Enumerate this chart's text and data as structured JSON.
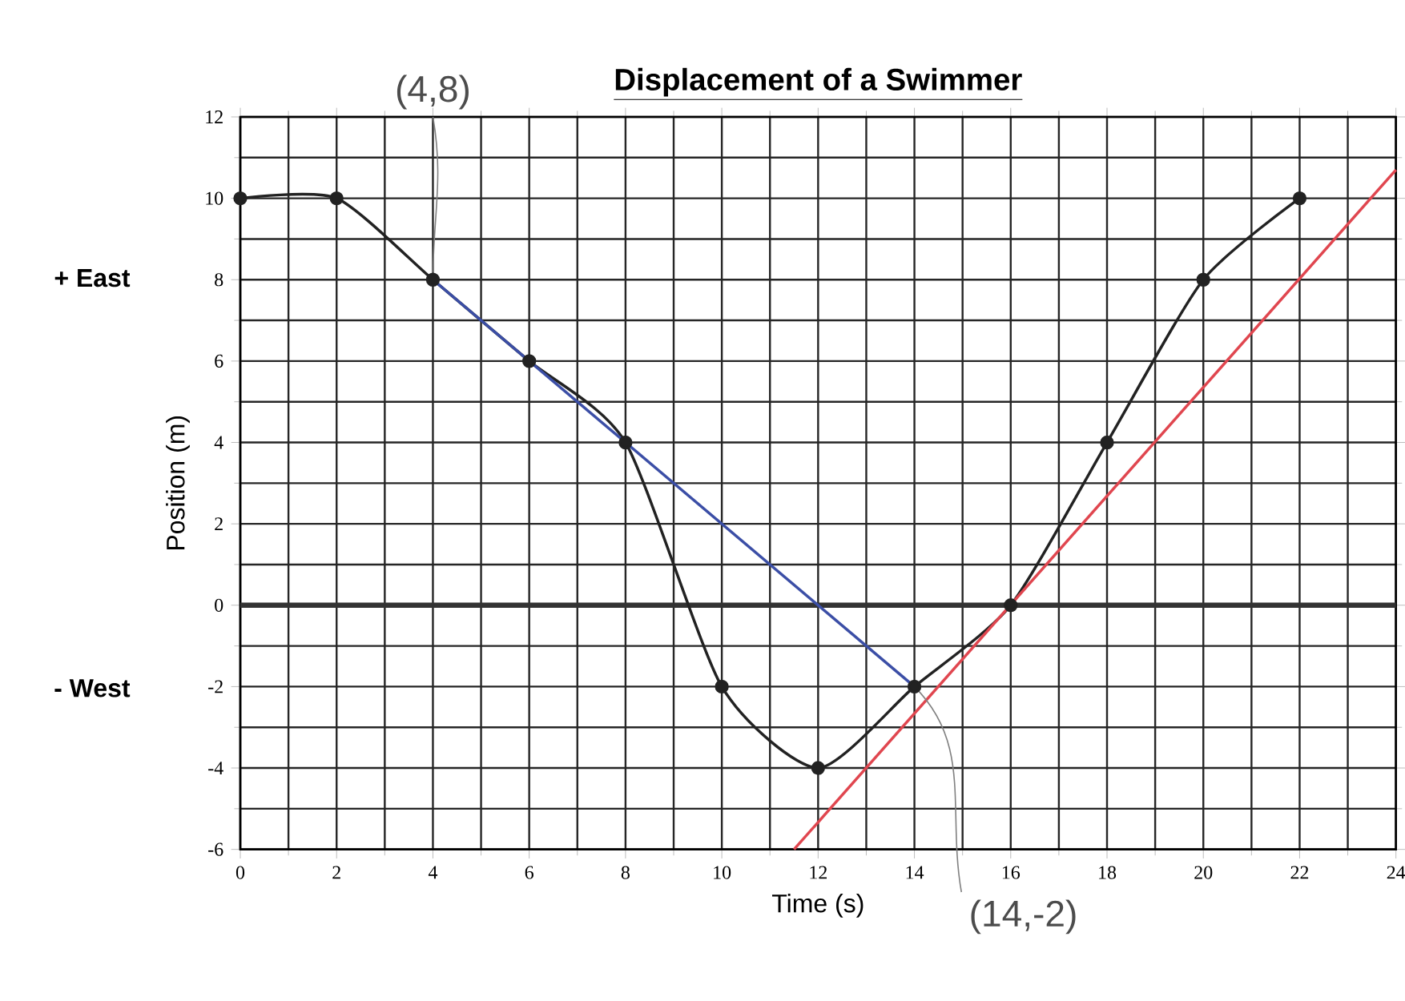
{
  "chart_data": {
    "type": "line",
    "title": "Displacement of a Swimmer",
    "xlabel": "Time (s)",
    "ylabel": "Position (m)",
    "xlim": [
      0,
      24
    ],
    "ylim": [
      -6,
      12
    ],
    "xticks": [
      0,
      2,
      4,
      6,
      8,
      10,
      12,
      14,
      16,
      18,
      20,
      22,
      24
    ],
    "yticks": [
      -6,
      -4,
      -2,
      0,
      2,
      4,
      6,
      8,
      10,
      12
    ],
    "grid": true,
    "marker": "circle",
    "series": [
      {
        "color": "#222222",
        "x": [
          0,
          2,
          4,
          6,
          8,
          10,
          12,
          14,
          16,
          18,
          20,
          22
        ],
        "values": [
          10,
          10,
          8,
          6,
          4,
          -2,
          -4,
          -2,
          0,
          4,
          8,
          10
        ]
      },
      {
        "color": "#3b4ea6",
        "marker": "none",
        "x": [
          4,
          14
        ],
        "values": [
          8,
          -2
        ]
      },
      {
        "color": "#e0464f",
        "marker": "none",
        "x": [
          11.5,
          24
        ],
        "values": [
          -6,
          10.7
        ]
      }
    ],
    "ref_lines": [
      {
        "axis": "y",
        "value": 0,
        "color": "#333333"
      }
    ],
    "annotations": [
      {
        "text": "(4,8)",
        "x": 4,
        "y": 8
      },
      {
        "text": "(14,-2)",
        "x": 14,
        "y": -2
      },
      "+ East",
      "- West"
    ]
  }
}
